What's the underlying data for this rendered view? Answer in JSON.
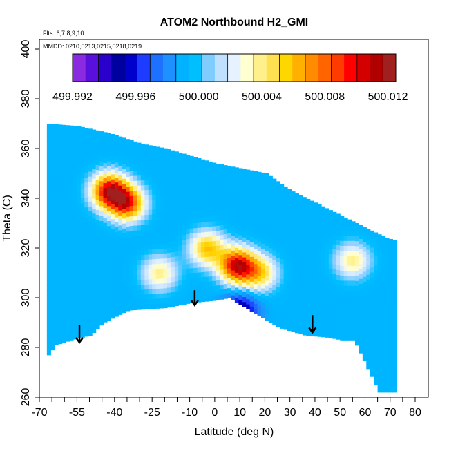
{
  "chart_data": {
    "type": "heatmap",
    "title": "ATOM2 Northbound H2_GMI",
    "flights_label": "Flts: 6,7,8,9,10",
    "dates_label": "MMDD: 0210,0213,0215,0218,0219",
    "xlabel": "Latitude (deg N)",
    "ylabel": "Theta (C)",
    "xlim": [
      -70,
      80
    ],
    "ylim": [
      260,
      400
    ],
    "x_tick_labels": [
      "-70",
      "-55",
      "-40",
      "-25",
      "-10",
      "0",
      "10",
      "20",
      "30",
      "40",
      "50",
      "60",
      "70",
      "80"
    ],
    "x_minor_ticks": [
      -65,
      -60,
      -50,
      -45,
      -35,
      -30,
      -20,
      -15,
      -5,
      5,
      15,
      25,
      35,
      45,
      55,
      65,
      75
    ],
    "y_ticks": [
      260,
      280,
      300,
      320,
      340,
      360,
      380,
      400
    ],
    "colorbar": {
      "min": 499.992,
      "max": 500.0125,
      "tick_labels": [
        "499.992",
        "499.996",
        "500.000",
        "500.004",
        "500.008",
        "500.012"
      ],
      "colors": [
        "#8A2BE2",
        "#5A10DD",
        "#2A00CC",
        "#0000A0",
        "#0000CD",
        "#1E3CFF",
        "#1E70FF",
        "#1E90FF",
        "#00B2FF",
        "#00BFFF",
        "#7FCCFF",
        "#BFE0FF",
        "#E6F2FF",
        "#FFFFD0",
        "#FFF08C",
        "#FFE050",
        "#FFD700",
        "#FFB000",
        "#FF8C00",
        "#FF6400",
        "#FF3C00",
        "#FF0000",
        "#D40000",
        "#B00000",
        "#A02020"
      ]
    },
    "values": {
      "background": 499.999,
      "peaks": [
        {
          "lat": -42,
          "theta": 343,
          "value": 500.011
        },
        {
          "lat": -35,
          "theta": 338,
          "value": 500.009
        },
        {
          "lat": -22,
          "theta": 310,
          "value": 500.004
        },
        {
          "lat": -3,
          "theta": 320,
          "value": 500.006
        },
        {
          "lat": 9,
          "theta": 313,
          "value": 500.011
        },
        {
          "lat": 18,
          "theta": 310,
          "value": 500.005
        },
        {
          "lat": 55,
          "theta": 315,
          "value": 500.004
        },
        {
          "lat": 10,
          "theta": 295,
          "value": 499.994
        }
      ]
    },
    "upper_boundary": [
      [
        -67,
        370
      ],
      [
        -55,
        369
      ],
      [
        -42,
        366
      ],
      [
        -30,
        362
      ],
      [
        -20,
        360
      ],
      [
        -10,
        357
      ],
      [
        0,
        354
      ],
      [
        10,
        352
      ],
      [
        20,
        350
      ],
      [
        30,
        343
      ],
      [
        40,
        338
      ],
      [
        50,
        333
      ],
      [
        60,
        328
      ],
      [
        68,
        324
      ],
      [
        72,
        323
      ]
    ],
    "lower_boundary": [
      [
        -67,
        277
      ],
      [
        -64,
        281
      ],
      [
        -58,
        283
      ],
      [
        -50,
        285
      ],
      [
        -45,
        290
      ],
      [
        -35,
        295
      ],
      [
        -20,
        296
      ],
      [
        -10,
        298
      ],
      [
        0,
        299
      ],
      [
        5,
        300
      ],
      [
        15,
        294
      ],
      [
        25,
        288
      ],
      [
        35,
        285
      ],
      [
        45,
        284
      ],
      [
        50,
        283
      ],
      [
        55,
        283
      ],
      [
        65,
        262
      ],
      [
        72,
        262
      ]
    ],
    "arrows": [
      {
        "lat": -54,
        "theta_from": 289,
        "theta_to": 282
      },
      {
        "lat": -8,
        "theta_from": 303,
        "theta_to": 297
      },
      {
        "lat": 39,
        "theta_from": 293,
        "theta_to": 286
      }
    ]
  }
}
